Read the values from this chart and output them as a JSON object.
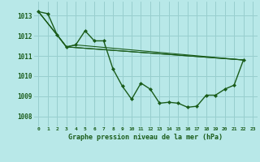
{
  "title": "Graphe pression niveau de la mer (hPa)",
  "bg_color": "#b8e8e8",
  "grid_color": "#98cece",
  "line_color": "#1a5c1a",
  "xlim": [
    -0.5,
    23.5
  ],
  "ylim": [
    1007.5,
    1013.7
  ],
  "yticks": [
    1008,
    1009,
    1010,
    1011,
    1012,
    1013
  ],
  "xtick_labels": [
    "0",
    "1",
    "2",
    "3",
    "4",
    "5",
    "6",
    "7",
    "8",
    "9",
    "10",
    "11",
    "12",
    "13",
    "14",
    "15",
    "16",
    "17",
    "18",
    "19",
    "20",
    "21",
    "22",
    "23"
  ],
  "series_main": {
    "x": [
      0,
      1,
      2,
      3,
      4,
      5,
      6,
      7,
      8,
      9,
      10,
      11,
      12,
      13,
      14,
      15,
      16,
      17,
      18,
      19,
      20,
      21,
      22
    ],
    "y": [
      1013.2,
      1013.1,
      1012.05,
      1011.45,
      1011.55,
      1012.25,
      1011.75,
      1011.75,
      1010.35,
      1009.5,
      1008.85,
      1009.65,
      1009.35,
      1008.65,
      1008.7,
      1008.65,
      1008.45,
      1008.5,
      1009.05,
      1009.05,
      1009.35,
      1009.55,
      1010.8
    ]
  },
  "series_smooth": [
    {
      "x": [
        0,
        2,
        3,
        22
      ],
      "y": [
        1013.2,
        1012.05,
        1011.45,
        1010.8
      ]
    },
    {
      "x": [
        0,
        2,
        3,
        4,
        22
      ],
      "y": [
        1013.2,
        1012.05,
        1011.45,
        1011.55,
        1010.8
      ]
    },
    {
      "x": [
        0,
        3,
        22
      ],
      "y": [
        1013.2,
        1011.45,
        1010.8
      ]
    }
  ]
}
